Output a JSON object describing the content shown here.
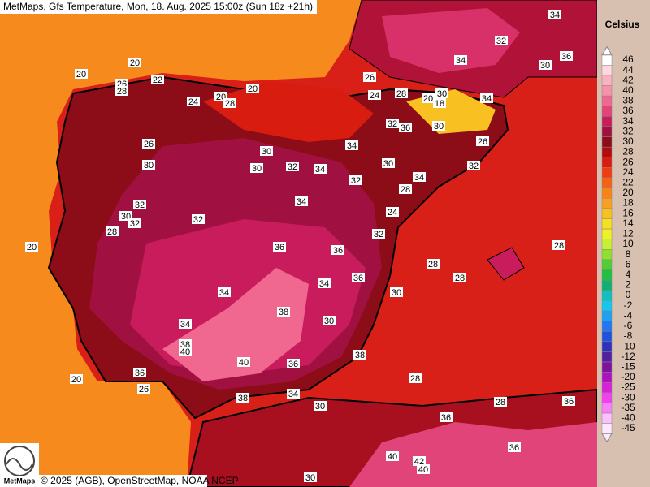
{
  "header": {
    "title": "MetMaps, Gfs Temperature, Mon, 18. Aug. 2025 15:00z (Sun 18z +21h)"
  },
  "legend": {
    "unit": "Celsius",
    "levels": [
      {
        "label": "46",
        "color": "#ffffff"
      },
      {
        "label": "44",
        "color": "#ffd8e0"
      },
      {
        "label": "42",
        "color": "#fcb0c0"
      },
      {
        "label": "40",
        "color": "#f890a8"
      },
      {
        "label": "38",
        "color": "#f06890"
      },
      {
        "label": "36",
        "color": "#e04478"
      },
      {
        "label": "34",
        "color": "#c81c5c"
      },
      {
        "label": "32",
        "color": "#a01040"
      },
      {
        "label": "30",
        "color": "#8c0c18"
      },
      {
        "label": "28",
        "color": "#b00c10"
      },
      {
        "label": "26",
        "color": "#d81c10"
      },
      {
        "label": "24",
        "color": "#f03c10"
      },
      {
        "label": "22",
        "color": "#f86010"
      },
      {
        "label": "20",
        "color": "#f88418"
      },
      {
        "label": "18",
        "color": "#f8a020"
      },
      {
        "label": "16",
        "color": "#f8c020"
      },
      {
        "label": "14",
        "color": "#f8e020"
      },
      {
        "label": "12",
        "color": "#f0f028"
      },
      {
        "label": "10",
        "color": "#c8f030"
      },
      {
        "label": "8",
        "color": "#90e030"
      },
      {
        "label": "6",
        "color": "#50d030"
      },
      {
        "label": "4",
        "color": "#20c040"
      },
      {
        "label": "2",
        "color": "#10b070"
      },
      {
        "label": "0",
        "color": "#10c0c0"
      },
      {
        "label": "-2",
        "color": "#10c8f0"
      },
      {
        "label": "-4",
        "color": "#20a0f0"
      },
      {
        "label": "-6",
        "color": "#2078f0"
      },
      {
        "label": "-8",
        "color": "#2050e0"
      },
      {
        "label": "-10",
        "color": "#3030c0"
      },
      {
        "label": "-12",
        "color": "#5020a0"
      },
      {
        "label": "-15",
        "color": "#8010a0"
      },
      {
        "label": "-20",
        "color": "#b010c0"
      },
      {
        "label": "-25",
        "color": "#d820d8"
      },
      {
        "label": "-30",
        "color": "#f040f0"
      },
      {
        "label": "-35",
        "color": "#f880f8"
      },
      {
        "label": "-40",
        "color": "#fcc0fc"
      },
      {
        "label": "-45",
        "color": "#ffe8ff"
      }
    ]
  },
  "map": {
    "contour_labels": [
      "34",
      "32",
      "34",
      "20",
      "20",
      "22",
      "26",
      "28",
      "30",
      "36",
      "26",
      "20",
      "24",
      "20",
      "28",
      "28",
      "30",
      "34",
      "24",
      "20",
      "18",
      "32",
      "36",
      "30",
      "26",
      "34",
      "26",
      "30",
      "30",
      "30",
      "32",
      "34",
      "30",
      "32",
      "32",
      "34",
      "32",
      "34",
      "28",
      "24",
      "30",
      "32",
      "32",
      "28",
      "32",
      "36",
      "36",
      "20",
      "28",
      "28",
      "28",
      "34",
      "34",
      "36",
      "30",
      "38",
      "30",
      "34",
      "38",
      "40",
      "40",
      "36",
      "38",
      "28",
      "20",
      "36",
      "26",
      "34",
      "38",
      "30",
      "36",
      "36",
      "42",
      "40",
      "40",
      "30",
      "28",
      "36"
    ]
  },
  "footer": {
    "credit": "© 2025 (AGB), OpenStreetMap, NOAA NCEP",
    "logo": "MetMaps"
  }
}
